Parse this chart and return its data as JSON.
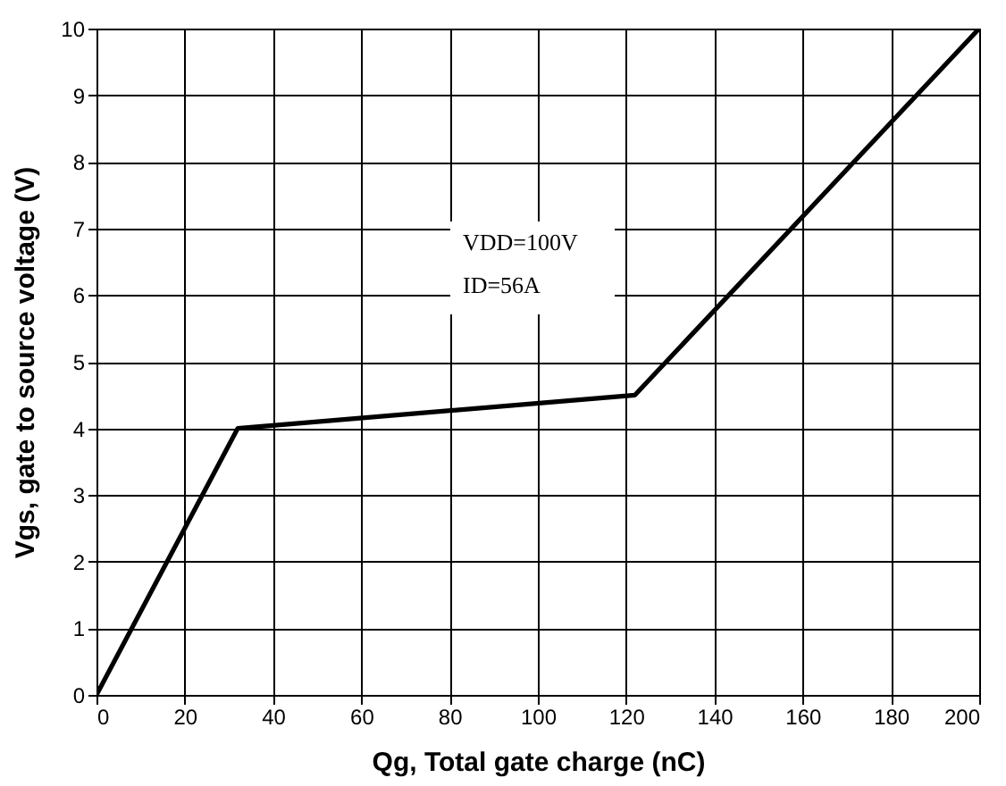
{
  "chart_data": {
    "type": "line",
    "xlabel": "Qg, Total gate charge (nC)",
    "ylabel": "Vgs, gate to source voltage (V)",
    "x": [
      0,
      32,
      122,
      200
    ],
    "series": [
      {
        "color": "#000000",
        "values": [
          0,
          4,
          4.5,
          10
        ]
      }
    ],
    "xlim": [
      0,
      200
    ],
    "xticks": [
      0,
      20,
      40,
      60,
      80,
      100,
      120,
      140,
      160,
      180,
      200
    ],
    "ylim": [
      0,
      10
    ],
    "yticks": [
      0,
      1,
      2,
      3,
      4,
      5,
      6,
      7,
      8,
      9,
      10
    ],
    "grid": true,
    "marker": "none",
    "line_style": "solid",
    "annotations": [
      "VDD=100V",
      "ID=56A"
    ]
  }
}
